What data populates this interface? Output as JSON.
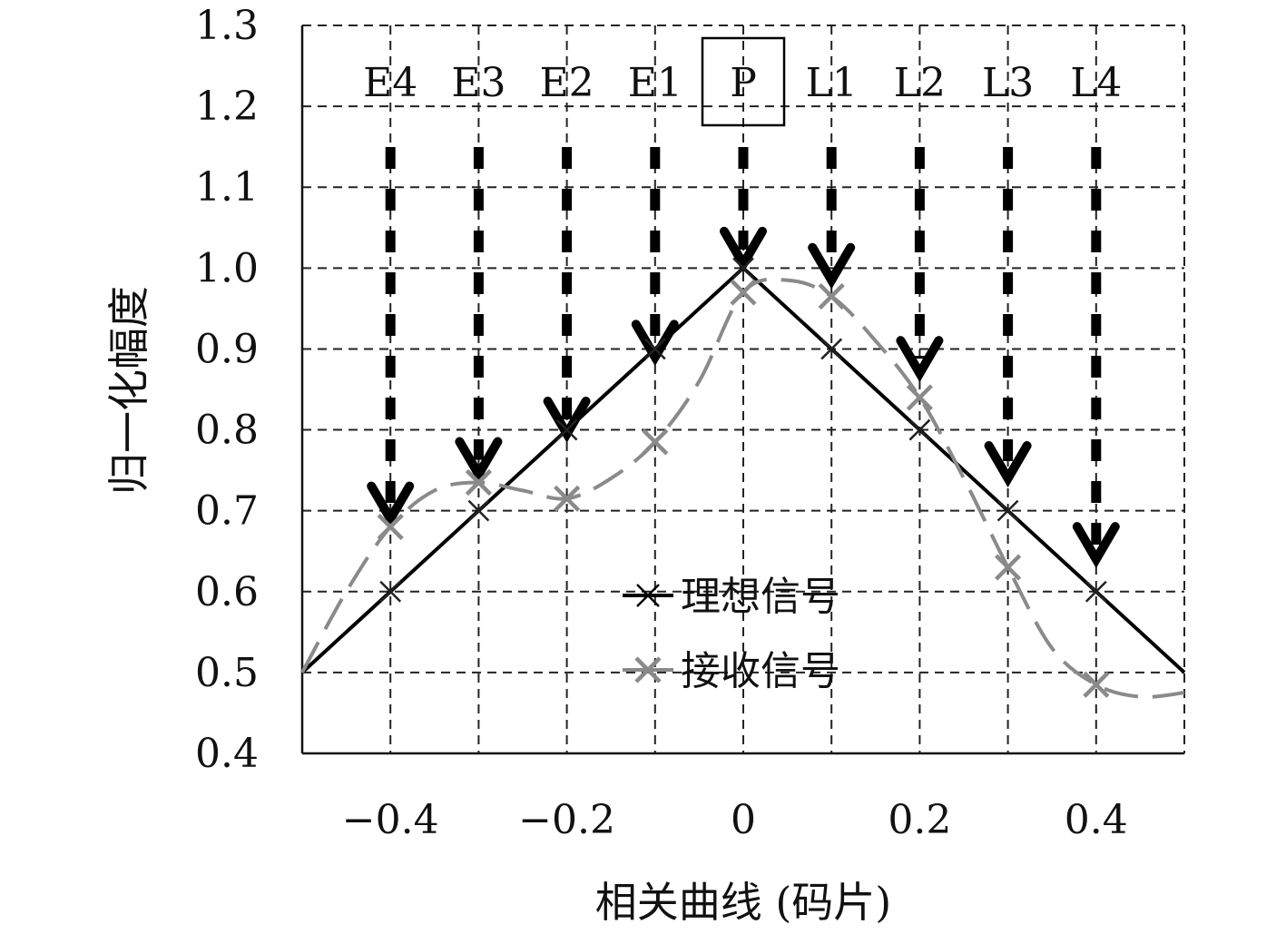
{
  "chart_data": {
    "type": "line",
    "xlabel": "相关曲线 (码片)",
    "ylabel": "归一化幅度",
    "xlim": [
      -0.5,
      0.5
    ],
    "ylim": [
      0.4,
      1.3
    ],
    "x_ticks": [
      -0.4,
      -0.2,
      0,
      0.2,
      0.4
    ],
    "x_tick_labels": [
      "−0.4",
      "−0.2",
      "0",
      "0.2",
      "0.4"
    ],
    "y_ticks": [
      0.4,
      0.5,
      0.6,
      0.7,
      0.8,
      0.9,
      1.0,
      1.1,
      1.2,
      1.3
    ],
    "y_tick_labels": [
      "0.4",
      "0.5",
      "0.6",
      "0.7",
      "0.8",
      "0.9",
      "1.0",
      "1.1",
      "1.2",
      "1.3"
    ],
    "grid": true,
    "legend_position": "lower-center",
    "correlators": [
      {
        "label": "E4",
        "x": -0.4,
        "arrow_to": 0.69
      },
      {
        "label": "E3",
        "x": -0.3,
        "arrow_to": 0.745
      },
      {
        "label": "E2",
        "x": -0.2,
        "arrow_to": 0.795
      },
      {
        "label": "E1",
        "x": -0.1,
        "arrow_to": 0.89
      },
      {
        "label": "P",
        "x": 0.0,
        "arrow_to": 1.005,
        "boxed": true
      },
      {
        "label": "L1",
        "x": 0.1,
        "arrow_to": 0.985
      },
      {
        "label": "L2",
        "x": 0.2,
        "arrow_to": 0.87
      },
      {
        "label": "L3",
        "x": 0.3,
        "arrow_to": 0.74
      },
      {
        "label": "L4",
        "x": 0.4,
        "arrow_to": 0.64
      }
    ],
    "series": [
      {
        "name": "理想信号",
        "style": "solid",
        "color": "#000000",
        "marker": "x",
        "x": [
          -0.5,
          0.0,
          0.5
        ],
        "y": [
          0.5,
          1.0,
          0.5
        ],
        "marker_x": [
          -0.4,
          -0.3,
          -0.2,
          -0.1,
          0.0,
          0.1,
          0.2,
          0.3,
          0.4
        ],
        "marker_y": [
          0.6,
          0.7,
          0.8,
          0.9,
          1.0,
          0.9,
          0.8,
          0.7,
          0.6
        ]
      },
      {
        "name": "接收信号",
        "style": "dashed",
        "color": "#8a8a8a",
        "marker": "x",
        "x": [
          -0.5,
          -0.45,
          -0.4,
          -0.35,
          -0.3,
          -0.25,
          -0.2,
          -0.15,
          -0.1,
          -0.05,
          0.0,
          0.05,
          0.1,
          0.15,
          0.2,
          0.25,
          0.3,
          0.35,
          0.4,
          0.45,
          0.5
        ],
        "y": [
          0.5,
          0.6,
          0.68,
          0.725,
          0.735,
          0.725,
          0.715,
          0.74,
          0.785,
          0.86,
          0.97,
          0.985,
          0.965,
          0.91,
          0.84,
          0.74,
          0.63,
          0.53,
          0.485,
          0.47,
          0.475
        ],
        "marker_x": [
          -0.4,
          -0.3,
          -0.2,
          -0.1,
          0.0,
          0.1,
          0.2,
          0.3,
          0.4
        ],
        "marker_y": [
          0.68,
          0.735,
          0.715,
          0.785,
          0.97,
          0.965,
          0.84,
          0.63,
          0.485
        ]
      }
    ]
  }
}
